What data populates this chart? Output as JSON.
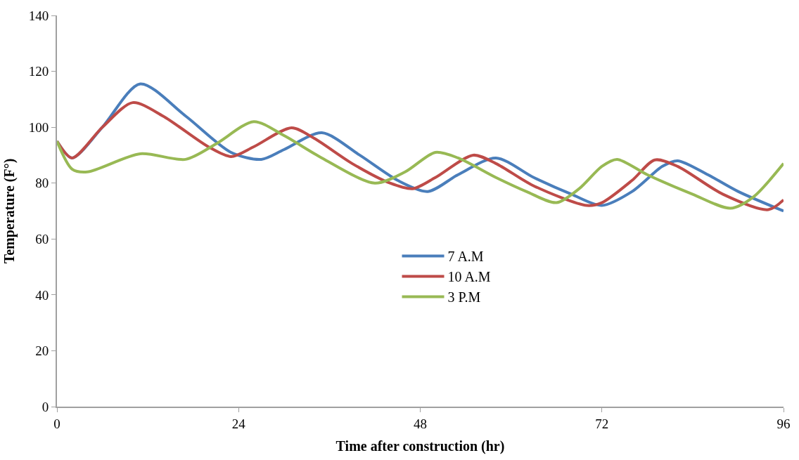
{
  "chart_data": {
    "type": "line",
    "xlabel": "Time after construction (hr)",
    "ylabel": "Temperature (F°)",
    "xlim": [
      0,
      96
    ],
    "xticks": [
      0,
      24,
      48,
      72,
      96
    ],
    "ylim": [
      0,
      140
    ],
    "yticks": [
      0,
      20,
      40,
      60,
      80,
      100,
      120,
      140
    ],
    "legend": "center",
    "marker": "none",
    "line_style": "solid",
    "series": [
      {
        "name": "7 A.M",
        "color": "#4a7ebb",
        "x": [
          0,
          2,
          6,
          11,
          17,
          23,
          27,
          30,
          35,
          40,
          45,
          49,
          53,
          58,
          63,
          68,
          72,
          76,
          80,
          82,
          86,
          90,
          96
        ],
        "values": [
          95,
          89,
          100,
          115.5,
          104,
          91,
          88.5,
          92,
          98,
          90,
          81,
          77,
          83,
          89,
          82,
          76,
          72,
          77,
          86,
          88,
          83,
          77,
          70
        ]
      },
      {
        "name": "10 A.M",
        "color": "#be4b48",
        "x": [
          0,
          2,
          6,
          10,
          14,
          20,
          23,
          26,
          31,
          34,
          39,
          44,
          47,
          50,
          55,
          58,
          63,
          70,
          72,
          76,
          79,
          82,
          88,
          94,
          96
        ],
        "values": [
          95,
          89,
          100,
          108.8,
          104,
          93,
          89.5,
          93,
          99.8,
          96,
          87,
          80,
          78,
          82,
          90,
          87,
          79,
          72,
          73,
          81,
          88.3,
          86,
          76,
          70.5,
          74
        ]
      },
      {
        "name": "3 P.M",
        "color": "#98b954",
        "x": [
          0,
          2,
          4,
          11,
          17,
          21,
          26,
          30,
          35,
          42,
          46,
          50,
          53,
          58,
          62,
          66,
          69,
          72,
          74,
          78,
          84,
          89,
          92,
          96
        ],
        "values": [
          95,
          85,
          84,
          90.5,
          88.5,
          94,
          102,
          97,
          89,
          80,
          84,
          91,
          89,
          82,
          77,
          73,
          78,
          86,
          88.5,
          83,
          76,
          71,
          75,
          87
        ]
      }
    ]
  }
}
